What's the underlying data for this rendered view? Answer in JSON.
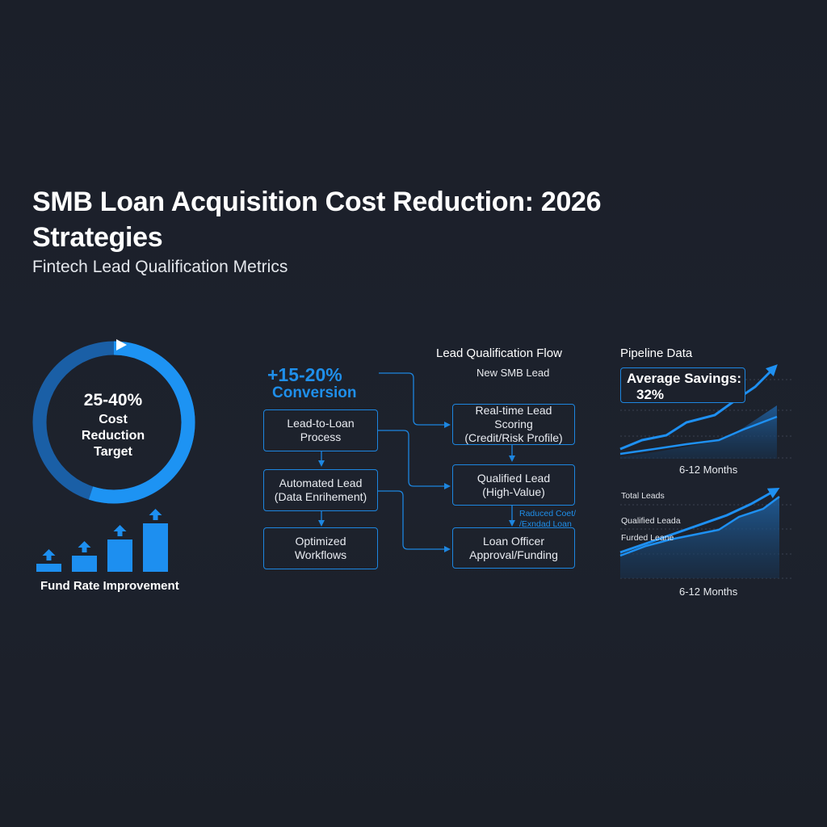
{
  "title": "SMB Loan Acquisition Cost Reduction: 2026 Strategies",
  "subtitle": "Fintech Lead Qualification Metrics",
  "target": {
    "value": "25-40%",
    "label": "Cost Reduction Target",
    "fill_fraction": 0.55
  },
  "fund_rate": {
    "label": "Fund Rate Improvement",
    "bars": [
      1,
      2,
      4,
      6
    ]
  },
  "conversion": {
    "value": "+15-20%",
    "label": "Conversion"
  },
  "flow": {
    "title": "Lead Qualification Flow",
    "start_label": "New SMB Lead",
    "left_steps": [
      "Lead-to-Loan\nProcess",
      "Automated Lead\n(Data Enrihement)",
      "Optimized\nWorkflows"
    ],
    "right_steps": [
      "Real-time Lead Scoring\n(Credit/Risk Profile)",
      "Qualified Lead\n(High-Value)",
      "Loan Officer\nApproval/Funding"
    ],
    "note": "Raduced Coet/\n/Exndad Loan"
  },
  "pipeline": {
    "title": "Pipeline Data",
    "savings_label": "Average Savings:",
    "savings_value": "32%",
    "top_xlabel": "6-12 Months",
    "bottom_xlabel": "6-12 Months",
    "legend": [
      "Total Leads",
      "Qualified Leada",
      "Furded Leane"
    ]
  },
  "colors": {
    "background": "#1c212c",
    "accent": "#1f8fea",
    "ring_dark": "#1a5fa6",
    "bar": "#1d8ff0"
  }
}
